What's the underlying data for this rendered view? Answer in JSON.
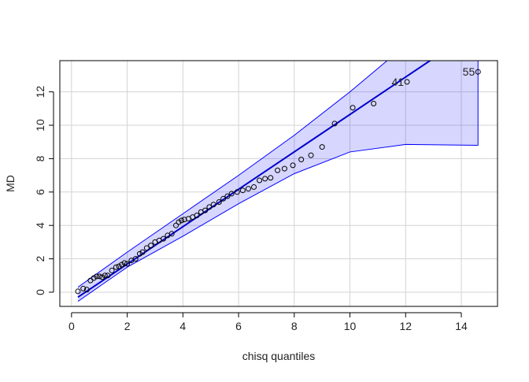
{
  "chart_data": {
    "type": "qqplot",
    "x_label": "chisq quantiles",
    "y_label": "MD",
    "xlim": [
      -0.42,
      15.3
    ],
    "ylim": [
      -0.85,
      13.87
    ],
    "xticks": [
      0,
      2,
      4,
      6,
      8,
      10,
      12,
      14
    ],
    "yticks": [
      0,
      2,
      4,
      6,
      8,
      10,
      12
    ],
    "grid": true,
    "point_color": "#000000",
    "x": [
      0.23,
      0.42,
      0.55,
      0.68,
      0.8,
      0.9,
      1.0,
      1.1,
      1.2,
      1.3,
      1.45,
      1.6,
      1.7,
      1.8,
      1.9,
      2.0,
      2.15,
      2.3,
      2.45,
      2.55,
      2.7,
      2.85,
      3.0,
      3.15,
      3.3,
      3.45,
      3.6,
      3.75,
      3.85,
      3.95,
      4.05,
      4.2,
      4.35,
      4.5,
      4.65,
      4.8,
      4.95,
      5.1,
      5.3,
      5.45,
      5.6,
      5.75,
      5.95,
      6.15,
      6.35,
      6.55,
      6.75,
      6.95,
      7.15,
      7.4,
      7.65,
      7.95,
      8.25,
      8.6,
      9.0,
      9.45,
      10.1,
      10.85,
      12.05,
      14.6
    ],
    "values": [
      0.05,
      0.22,
      0.15,
      0.7,
      0.85,
      0.95,
      0.95,
      0.9,
      1.0,
      1.0,
      1.3,
      1.5,
      1.55,
      1.65,
      1.75,
      1.7,
      1.9,
      2.0,
      2.3,
      2.4,
      2.65,
      2.8,
      3.0,
      3.1,
      3.2,
      3.4,
      3.5,
      4.0,
      4.2,
      4.3,
      4.35,
      4.4,
      4.5,
      4.6,
      4.8,
      4.9,
      5.1,
      5.25,
      5.4,
      5.6,
      5.75,
      5.9,
      6.0,
      6.1,
      6.2,
      6.3,
      6.7,
      6.8,
      6.85,
      7.3,
      7.4,
      7.6,
      7.95,
      8.2,
      8.7,
      10.1,
      11.05,
      11.3,
      12.6,
      13.2
    ],
    "point_labels": [
      null,
      null,
      null,
      null,
      null,
      null,
      null,
      null,
      null,
      null,
      null,
      null,
      null,
      null,
      null,
      null,
      null,
      null,
      null,
      null,
      null,
      null,
      null,
      null,
      null,
      null,
      null,
      null,
      null,
      null,
      null,
      null,
      null,
      null,
      null,
      null,
      null,
      null,
      null,
      null,
      null,
      null,
      null,
      null,
      null,
      null,
      null,
      null,
      null,
      null,
      null,
      null,
      null,
      null,
      null,
      null,
      null,
      null,
      "41",
      "55"
    ],
    "ref_line": {
      "color": "#0000cd",
      "x": [
        0.23,
        14.6
      ],
      "y": [
        -0.3,
        15.8
      ]
    },
    "band": {
      "color": "#0000ff",
      "x": [
        0.23,
        2,
        4,
        6,
        8,
        10,
        12,
        14.6
      ],
      "upper": [
        0.3,
        2.4,
        4.7,
        7.0,
        9.4,
        12.0,
        14.8,
        18.5
      ],
      "lower": [
        -0.55,
        1.5,
        3.35,
        5.3,
        7.1,
        8.4,
        8.85,
        8.8
      ]
    }
  }
}
